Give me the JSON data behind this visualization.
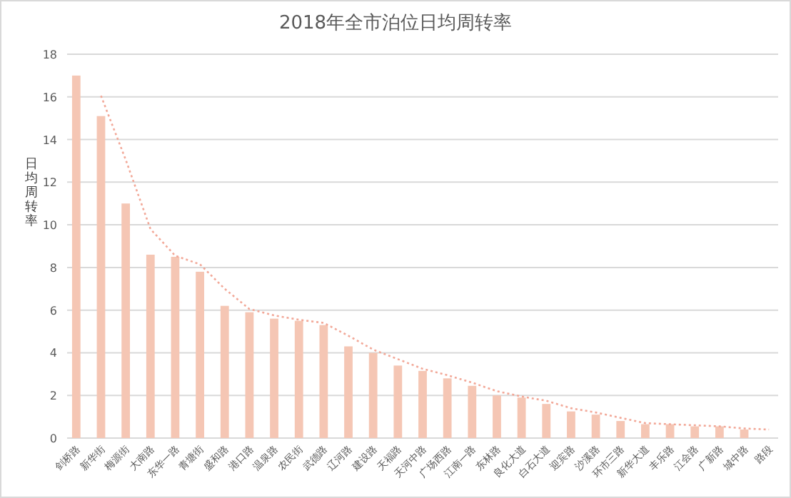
{
  "chart_data": {
    "type": "bar",
    "title": "2018年全市泊位日均周转率",
    "ylabel": "日均周转率",
    "categories": [
      "剑桥路",
      "新华街",
      "梅源街",
      "大南路",
      "东华一路",
      "青塘街",
      "盛和路",
      "港口路",
      "温泉路",
      "农民街",
      "武德路",
      "辽河路",
      "建设路",
      "天福路",
      "天河中路",
      "广场西路",
      "江南一路",
      "东林路",
      "良化大道",
      "白石大道",
      "迎宾路",
      "沙溪路",
      "环市三路",
      "新华大道",
      "丰乐路",
      "江会路",
      "广新路",
      "城中路",
      "路段"
    ],
    "series": [
      {
        "color": "#f5c6b4",
        "values": [
          17,
          15.1,
          11,
          8.6,
          8.5,
          7.8,
          6.2,
          5.9,
          5.6,
          5.5,
          5.3,
          4.3,
          4.0,
          3.4,
          3.15,
          2.8,
          2.45,
          2.0,
          1.9,
          1.6,
          1.25,
          1.1,
          0.8,
          0.65,
          0.65,
          0.55,
          0.55,
          0.4,
          null
        ]
      },
      {
        "type": "line",
        "color": "#f2a898",
        "line_style": "dotted",
        "values": [
          null,
          16.05,
          13.05,
          9.8,
          8.55,
          8.15,
          7.0,
          6.05,
          5.75,
          5.55,
          5.4,
          4.8,
          4.15,
          3.7,
          3.25,
          2.95,
          2.6,
          2.2,
          1.95,
          1.75,
          1.4,
          1.2,
          0.95,
          0.7,
          0.65,
          0.6,
          0.55,
          0.45,
          0.4
        ]
      }
    ],
    "ylim": [
      0,
      18
    ],
    "yticks": [
      0,
      2,
      4,
      6,
      8,
      10,
      12,
      14,
      16,
      18
    ],
    "grid": "y"
  }
}
